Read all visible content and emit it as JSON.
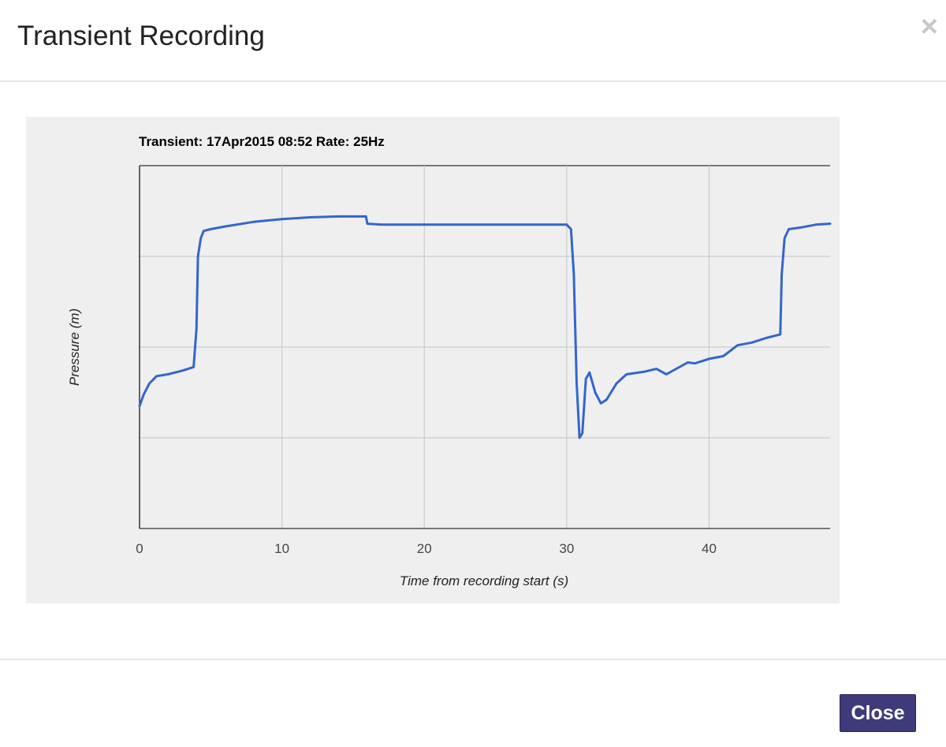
{
  "modal": {
    "title": "Transient Recording",
    "close_icon": "close-icon",
    "close_glyph": "×",
    "close_button_label": "Close",
    "colors": {
      "button_bg": "#3f3b7a",
      "chart_bg": "#efefef",
      "line": "#3366cc",
      "grid": "#cccccc"
    }
  },
  "chart_data": {
    "type": "line",
    "title": "Transient: 17Apr2015 08:52 Rate: 25Hz",
    "xlabel": "Time from recording start (s)",
    "ylabel": "Pressure (m)",
    "xlim": [
      0,
      48.5
    ],
    "ylim": [
      0,
      4
    ],
    "x_ticks": [
      0,
      10,
      20,
      30,
      40
    ],
    "y_gridlines": [
      1,
      2,
      3,
      4
    ],
    "y_tick_labels_visible": false,
    "grid": true,
    "legend": "none",
    "series": [
      {
        "color": "#3366cc",
        "points": [
          [
            0,
            1.35
          ],
          [
            0.3,
            1.48
          ],
          [
            0.7,
            1.6
          ],
          [
            1.2,
            1.68
          ],
          [
            2,
            1.7
          ],
          [
            3,
            1.74
          ],
          [
            3.8,
            1.78
          ],
          [
            4.0,
            2.2
          ],
          [
            4.1,
            3.0
          ],
          [
            4.3,
            3.2
          ],
          [
            4.5,
            3.28
          ],
          [
            5,
            3.3
          ],
          [
            6,
            3.33
          ],
          [
            8,
            3.38
          ],
          [
            10,
            3.41
          ],
          [
            12,
            3.43
          ],
          [
            14,
            3.44
          ],
          [
            15.9,
            3.44
          ],
          [
            16.0,
            3.36
          ],
          [
            17,
            3.35
          ],
          [
            20,
            3.35
          ],
          [
            25,
            3.35
          ],
          [
            30,
            3.35
          ],
          [
            30.3,
            3.3
          ],
          [
            30.5,
            2.8
          ],
          [
            30.7,
            1.6
          ],
          [
            30.9,
            1.0
          ],
          [
            31.1,
            1.05
          ],
          [
            31.35,
            1.65
          ],
          [
            31.6,
            1.72
          ],
          [
            32,
            1.5
          ],
          [
            32.4,
            1.38
          ],
          [
            32.8,
            1.42
          ],
          [
            33.5,
            1.6
          ],
          [
            34.2,
            1.7
          ],
          [
            35.5,
            1.73
          ],
          [
            36.3,
            1.76
          ],
          [
            37,
            1.7
          ],
          [
            38.5,
            1.83
          ],
          [
            39,
            1.82
          ],
          [
            40,
            1.87
          ],
          [
            41,
            1.9
          ],
          [
            42,
            2.02
          ],
          [
            43,
            2.05
          ],
          [
            44,
            2.1
          ],
          [
            45.0,
            2.14
          ],
          [
            45.1,
            2.8
          ],
          [
            45.3,
            3.2
          ],
          [
            45.6,
            3.3
          ],
          [
            46.5,
            3.32
          ],
          [
            47.5,
            3.35
          ],
          [
            48.5,
            3.36
          ]
        ]
      }
    ]
  }
}
